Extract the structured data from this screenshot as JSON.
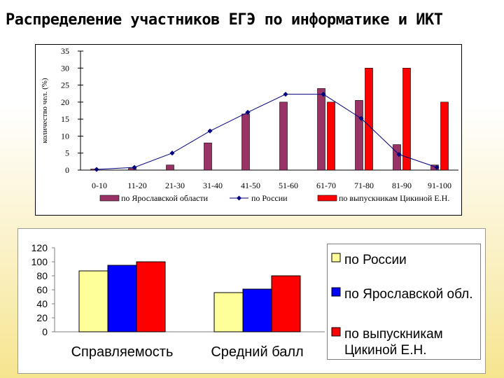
{
  "title": "Распределение участников ЕГЭ по информатике и ИКТ",
  "chart_data": [
    {
      "type": "bar",
      "title": "",
      "xlabel": "",
      "ylabel": "количество чел. (%)",
      "ylim": [
        0,
        35
      ],
      "yticks": [
        0,
        5,
        10,
        15,
        20,
        25,
        30,
        35
      ],
      "grid": false,
      "legend_position": "bottom",
      "categories": [
        "0-10",
        "11-20",
        "21-30",
        "31-40",
        "41-50",
        "51-60",
        "61-70",
        "71-80",
        "81-90",
        "91-100"
      ],
      "series": [
        {
          "name": "по Ярославской области",
          "kind": "bar",
          "color": "#993366",
          "values": [
            0.3,
            0.5,
            1.5,
            8,
            16.5,
            20,
            24,
            20.5,
            7.5,
            1.5
          ]
        },
        {
          "name": "по России",
          "kind": "line",
          "color": "#000080",
          "values": [
            0.2,
            0.8,
            5,
            11.5,
            17,
            22.3,
            22.3,
            15.2,
            4.6,
            0.8
          ]
        },
        {
          "name": "по выпускникам Цикиной Е.Н.",
          "kind": "bar",
          "color": "#ff0000",
          "values": [
            0,
            0,
            0,
            0,
            0,
            0,
            20,
            30,
            30,
            20
          ]
        }
      ]
    },
    {
      "type": "bar",
      "title": "",
      "xlabel": "",
      "ylabel": "",
      "ylim": [
        0,
        120
      ],
      "yticks": [
        0,
        20,
        40,
        60,
        80,
        100,
        120
      ],
      "grid": false,
      "legend_position": "right",
      "categories": [
        "Справляемость",
        "Средний балл"
      ],
      "series": [
        {
          "name": "по России",
          "color": "#ffff99",
          "values": [
            87,
            56
          ]
        },
        {
          "name": "по Ярославской обл.",
          "color": "#0000ff",
          "values": [
            95,
            61
          ]
        },
        {
          "name": "по выпускникам Цикиной Е.Н.",
          "name_lines": [
            "по выпускникам",
            "Цикиной Е.Н."
          ],
          "color": "#ff0000",
          "values": [
            100,
            80
          ]
        }
      ]
    }
  ]
}
